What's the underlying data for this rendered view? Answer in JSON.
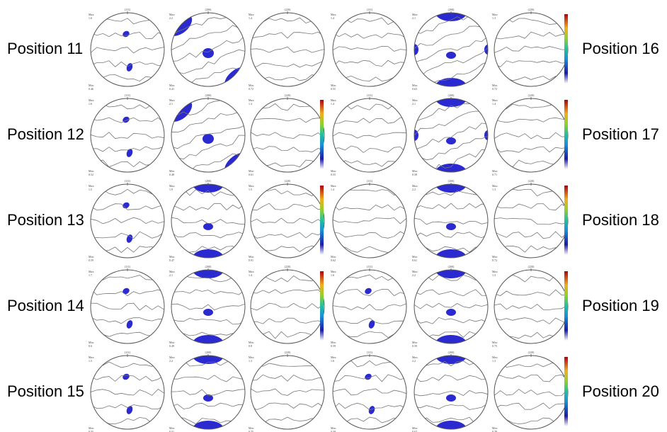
{
  "max_label": "Max:",
  "min_label": "Min:",
  "planes": [
    "(111)",
    "(200)",
    "(220)"
  ],
  "rows": [
    {
      "left": "Position 11",
      "right": "Position 16",
      "max": [
        1.6,
        2.2,
        1.4,
        1.4,
        2.1,
        1.3
      ],
      "min": [
        0.46,
        0.41,
        0.72,
        0.55,
        0.63,
        0.72
      ]
    },
    {
      "left": "Position 12",
      "right": "Position 17",
      "max": [
        1.6,
        2.1,
        1.3,
        1.4,
        2.1,
        1.4
      ],
      "min": [
        0.52,
        0.48,
        0.61,
        0.55,
        0.58,
        0.71
      ]
    },
    {
      "left": "Position 13",
      "right": "Position 18",
      "max": [
        1.5,
        1.9,
        1.5,
        1.4,
        2.2,
        1.3
      ],
      "min": [
        0.59,
        0.47,
        0.91,
        0.62,
        0.61,
        0.72
      ]
    },
    {
      "left": "Position 14",
      "right": "Position 19",
      "max": [
        1.7,
        2.1,
        1.4,
        1.6,
        2.2,
        1.3
      ],
      "min": [
        0.6,
        0.49,
        0.8,
        0.59,
        0.59,
        0.75
      ]
    },
    {
      "left": "Position 15",
      "right": "Position 20",
      "max": [
        1.5,
        2.2,
        1.3,
        1.6,
        2.2,
        1.3
      ],
      "min": [
        0.55,
        0.51,
        0.75,
        0.59,
        0.67,
        0.78
      ]
    }
  ]
}
